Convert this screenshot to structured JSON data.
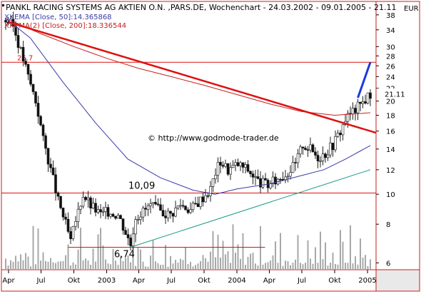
{
  "chart_data": {
    "type": "candlestick",
    "title": "PANKL RACING SYSTEMS AG AKTIEN O.N. ,PARS.DE, Wochenchart - 24.03.2002 - 09.01.2005 - 21.11",
    "currency": "EUR",
    "y_scale": "log",
    "ylim": [
      5.7,
      42
    ],
    "y_ticks": [
      6,
      8,
      10,
      12,
      14,
      16,
      18,
      20,
      22,
      24,
      26,
      28,
      30,
      34,
      38
    ],
    "last_price_label": "21.11",
    "x_start": "2002-03-24",
    "x_end": "2005-01-09",
    "x_ticks": [
      {
        "date": "2002-04-01",
        "label": "Apr"
      },
      {
        "date": "2002-07-01",
        "label": "Jul"
      },
      {
        "date": "2002-10-01",
        "label": "Okt"
      },
      {
        "date": "2003-01-01",
        "label": "2003"
      },
      {
        "date": "2003-04-01",
        "label": "Apr"
      },
      {
        "date": "2003-07-01",
        "label": "Jul"
      },
      {
        "date": "2003-10-01",
        "label": "Okt"
      },
      {
        "date": "2004-01-01",
        "label": "2004"
      },
      {
        "date": "2004-04-01",
        "label": "Apr"
      },
      {
        "date": "2004-07-01",
        "label": "Jul"
      },
      {
        "date": "2004-10-01",
        "label": "Okt"
      },
      {
        "date": "2005-01-01",
        "label": "2005"
      }
    ],
    "legend": [
      {
        "prefix": "XX",
        "text": "EMA [Close, 50]:14.365868",
        "color": "#3a3aa8"
      },
      {
        "prefix": "XX",
        "text": "EMA(2) [Close, 200]:18.336544",
        "color": "#c62020"
      }
    ],
    "watermark": "© http://www.godmode-trader.de",
    "price_anchors": [
      [
        "2002-03-24",
        36.5
      ],
      [
        "2002-04-14",
        35.0
      ],
      [
        "2002-05-05",
        29.0
      ],
      [
        "2002-05-26",
        24.0
      ],
      [
        "2002-06-16",
        20.0
      ],
      [
        "2002-07-07",
        15.0
      ],
      [
        "2002-07-28",
        12.0
      ],
      [
        "2002-08-18",
        9.5
      ],
      [
        "2002-09-08",
        8.0
      ],
      [
        "2002-09-22",
        7.0
      ],
      [
        "2002-10-13",
        8.8
      ],
      [
        "2002-10-27",
        10.0
      ],
      [
        "2002-11-17",
        9.2
      ],
      [
        "2002-12-15",
        8.6
      ],
      [
        "2003-01-05",
        8.8
      ],
      [
        "2003-02-02",
        8.6
      ],
      [
        "2003-03-02",
        7.2
      ],
      [
        "2003-03-09",
        6.9
      ],
      [
        "2003-03-23",
        8.5
      ],
      [
        "2003-04-13",
        8.8
      ],
      [
        "2003-05-04",
        9.2
      ],
      [
        "2003-06-01",
        8.8
      ],
      [
        "2003-06-29",
        8.6
      ],
      [
        "2003-07-27",
        9.3
      ],
      [
        "2003-08-24",
        8.9
      ],
      [
        "2003-09-21",
        9.6
      ],
      [
        "2003-10-19",
        10.4
      ],
      [
        "2003-11-02",
        11.8
      ],
      [
        "2003-11-16",
        12.8
      ],
      [
        "2003-12-07",
        12.0
      ],
      [
        "2004-01-04",
        12.5
      ],
      [
        "2004-02-01",
        12.0
      ],
      [
        "2004-02-29",
        11.0
      ],
      [
        "2004-03-28",
        10.7
      ],
      [
        "2004-04-25",
        11.2
      ],
      [
        "2004-05-23",
        11.8
      ],
      [
        "2004-06-13",
        12.5
      ],
      [
        "2004-07-04",
        14.5
      ],
      [
        "2004-07-25",
        14.0
      ],
      [
        "2004-08-15",
        13.2
      ],
      [
        "2004-09-05",
        13.6
      ],
      [
        "2004-09-26",
        14.5
      ],
      [
        "2004-10-17",
        16.0
      ],
      [
        "2004-10-31",
        17.5
      ],
      [
        "2004-11-21",
        18.5
      ],
      [
        "2004-12-12",
        19.5
      ],
      [
        "2005-01-09",
        21.11
      ]
    ],
    "ema50": [
      [
        "2002-03-24",
        37.0
      ],
      [
        "2002-06-01",
        32.0
      ],
      [
        "2002-09-01",
        23.0
      ],
      [
        "2002-12-01",
        17.0
      ],
      [
        "2003-03-01",
        13.0
      ],
      [
        "2003-06-01",
        11.3
      ],
      [
        "2003-09-01",
        10.3
      ],
      [
        "2003-11-01",
        10.0
      ],
      [
        "2004-01-01",
        10.4
      ],
      [
        "2004-04-01",
        10.8
      ],
      [
        "2004-07-01",
        11.5
      ],
      [
        "2004-09-01",
        12.0
      ],
      [
        "2004-11-01",
        13.0
      ],
      [
        "2005-01-09",
        14.37
      ]
    ],
    "ema200": [
      [
        "2002-03-24",
        37.0
      ],
      [
        "2002-07-01",
        33.0
      ],
      [
        "2002-10-01",
        30.0
      ],
      [
        "2003-01-01",
        27.5
      ],
      [
        "2003-04-01",
        25.5
      ],
      [
        "2003-07-01",
        24.0
      ],
      [
        "2003-10-01",
        22.5
      ],
      [
        "2004-01-01",
        21.0
      ],
      [
        "2004-04-01",
        19.6
      ],
      [
        "2004-07-01",
        18.5
      ],
      [
        "2004-10-01",
        18.0
      ],
      [
        "2005-01-09",
        18.34
      ]
    ],
    "trend_lines": [
      {
        "name": "downtrend",
        "color": "#dd1111",
        "width": 2.5,
        "points": [
          [
            "2002-04-01",
            36.0
          ],
          [
            "2005-01-09",
            16.0
          ]
        ]
      },
      {
        "name": "uptrend-support",
        "color": "#1a9a8a",
        "width": 1,
        "points": [
          [
            "2003-03-09",
            6.74
          ],
          [
            "2005-01-09",
            12.0
          ]
        ]
      },
      {
        "name": "breakout-projection",
        "color": "#1a3ae0",
        "width": 3,
        "points": [
          [
            "2004-12-05",
            20.5
          ],
          [
            "2005-01-09",
            26.7
          ]
        ]
      }
    ],
    "horizontal_levels": [
      {
        "value": 26.7,
        "label": "26.7",
        "color": "#dd1111"
      },
      {
        "value": 10.09,
        "label": "10,09",
        "color": "#dd1111"
      },
      {
        "value": 6.74,
        "label": "6,74",
        "color": "#dd1111"
      }
    ]
  }
}
